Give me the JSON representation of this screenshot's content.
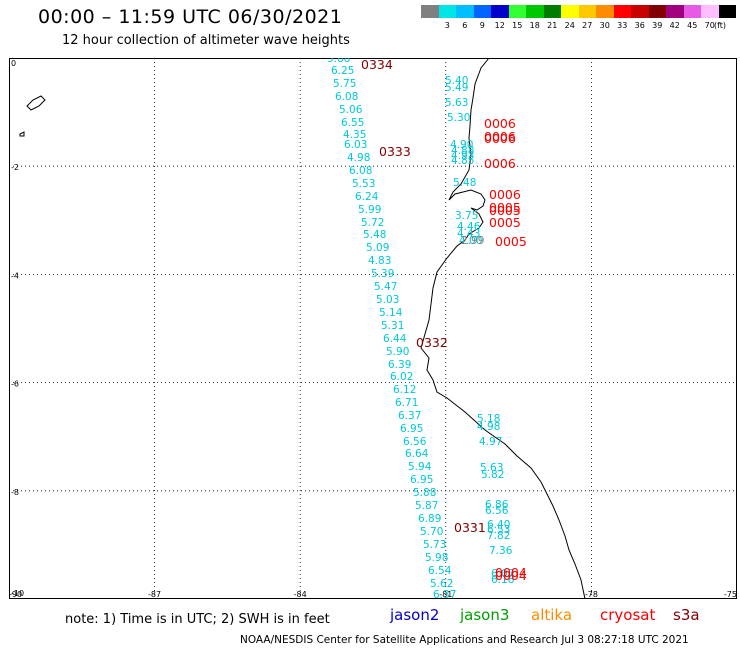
{
  "title": "00:00 – 11:59 UTC 06/30/2021",
  "subtitle": "12 hour collection of altimeter wave heights",
  "colorscale": {
    "unit": "(ft)",
    "swatches": [
      {
        "color": "#808080",
        "label": ""
      },
      {
        "color": "#00e5e5",
        "label": "3"
      },
      {
        "color": "#00bfff",
        "label": "6"
      },
      {
        "color": "#0064ff",
        "label": "9"
      },
      {
        "color": "#0000c8",
        "label": "12"
      },
      {
        "color": "#32ff32",
        "label": "15"
      },
      {
        "color": "#00c800",
        "label": "18"
      },
      {
        "color": "#007d00",
        "label": "21"
      },
      {
        "color": "#ffff00",
        "label": "24"
      },
      {
        "color": "#ffc800",
        "label": "27"
      },
      {
        "color": "#ff8c00",
        "label": "30"
      },
      {
        "color": "#ff0000",
        "label": "33"
      },
      {
        "color": "#c80000",
        "label": "36"
      },
      {
        "color": "#820000",
        "label": "39"
      },
      {
        "color": "#a0007d",
        "label": "42"
      },
      {
        "color": "#e65ae6",
        "label": "45"
      },
      {
        "color": "#ffbeff",
        "label": "70"
      },
      {
        "color": "#000000",
        "label": ""
      }
    ]
  },
  "map": {
    "lon_range": [
      -90,
      -75
    ],
    "lat_range": [
      -10,
      0
    ],
    "x_ticks": [
      "-90",
      "-87",
      "-84",
      "-81",
      "-78",
      "-75"
    ],
    "y_ticks": [
      "0",
      "-2",
      "-4",
      "-6",
      "-8",
      "-10"
    ],
    "track_main": [
      "5.88",
      "6.25",
      "5.75",
      "6.08",
      "5.06",
      "6.55",
      "4.35",
      "6.03",
      "4.98",
      "6.08",
      "5.53",
      "6.24",
      "5.99",
      "5.72",
      "5.48",
      "5.09",
      "4.83",
      "5.39",
      "5.47",
      "5.03",
      "5.14",
      "5.31",
      "6.44",
      "5.90",
      "6.39",
      "6.02",
      "6.12",
      "6.71",
      "6.37",
      "6.95",
      "6.56",
      "6.64",
      "5.94",
      "6.95",
      "5.88",
      "5.87",
      "6.89",
      "5.70",
      "5.73",
      "5.98",
      "6.54",
      "5.62",
      "6.37"
    ],
    "track_north": [
      "5.40",
      "5.49",
      "5.63",
      "5.30",
      "4.90",
      "4.88",
      "4.93",
      "4.85",
      "5.48",
      "3.75",
      "4.46",
      "4.43",
      "4.00"
    ],
    "track_south": [
      "5.18",
      "4.98",
      "4.97",
      "5.63",
      "5.82",
      "6.86",
      "6.56",
      "6.40",
      "6.53",
      "7.82",
      "7.36",
      "6.07",
      "6.18"
    ],
    "track_gray": "2.99",
    "time_labels": [
      {
        "text": "0334",
        "color": "#820000"
      },
      {
        "text": "0333",
        "color": "#820000"
      },
      {
        "text": "0332",
        "color": "#820000"
      },
      {
        "text": "0331",
        "color": "#820000"
      },
      {
        "text": "0006",
        "color": "#ff0000"
      },
      {
        "text": "0006",
        "color": "#ff0000"
      },
      {
        "text": "0006",
        "color": "#ff0000"
      },
      {
        "text": "0006",
        "color": "#ff0000"
      },
      {
        "text": "0006",
        "color": "#ff0000"
      },
      {
        "text": "0005",
        "color": "#ff0000"
      },
      {
        "text": "0005",
        "color": "#ff0000"
      },
      {
        "text": "0005",
        "color": "#ff0000"
      },
      {
        "text": "0005",
        "color": "#ff0000"
      },
      {
        "text": "0004",
        "color": "#ff0000"
      },
      {
        "text": "0004",
        "color": "#ff0000"
      }
    ]
  },
  "note": "note: 1) Time is in UTC; 2) SWH is in feet",
  "satellites": [
    {
      "name": "jason2",
      "color": "#0000c8"
    },
    {
      "name": "jason3",
      "color": "#00a000"
    },
    {
      "name": "altika",
      "color": "#ff8c00"
    },
    {
      "name": "cryosat",
      "color": "#ff0000"
    },
    {
      "name": "s3a",
      "color": "#820000"
    }
  ],
  "footer": "NOAA/NESDIS Center for Satellite Applications and Research   Jul  3 08:27:18 UTC 2021"
}
